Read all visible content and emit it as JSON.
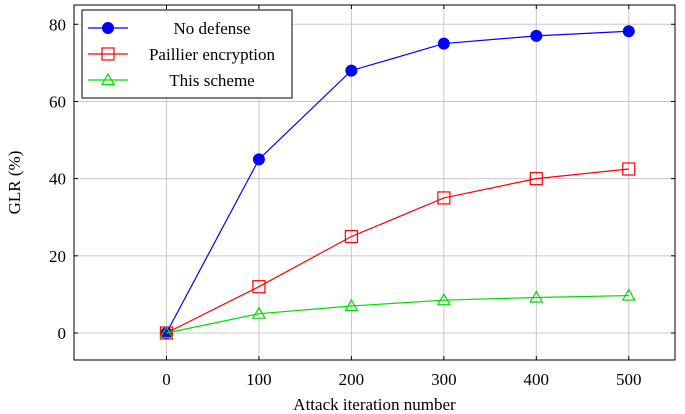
{
  "chart_data": {
    "type": "line",
    "title": "",
    "xlabel": "Attack iteration number",
    "ylabel": "GLR (%)",
    "x": [
      0,
      100,
      200,
      300,
      400,
      500
    ],
    "xlim": [
      -100,
      550
    ],
    "ylim": [
      -7,
      85
    ],
    "xticks": [
      0,
      100,
      200,
      300,
      400,
      500
    ],
    "yticks": [
      0,
      20,
      40,
      60,
      80
    ],
    "grid": true,
    "legend_position": "top-left",
    "series": [
      {
        "name": "No defense",
        "values": [
          0,
          45,
          68,
          75,
          77,
          78.2
        ],
        "color": "#0000ff",
        "marker": "filled-circle"
      },
      {
        "name": "Paillier encryption",
        "values": [
          0,
          12,
          25,
          35,
          40,
          42.5
        ],
        "color": "#ff0000",
        "marker": "open-square"
      },
      {
        "name": "This scheme",
        "values": [
          0,
          5,
          7,
          8.5,
          9.2,
          9.7
        ],
        "color": "#00dd00",
        "marker": "open-triangle"
      }
    ]
  }
}
